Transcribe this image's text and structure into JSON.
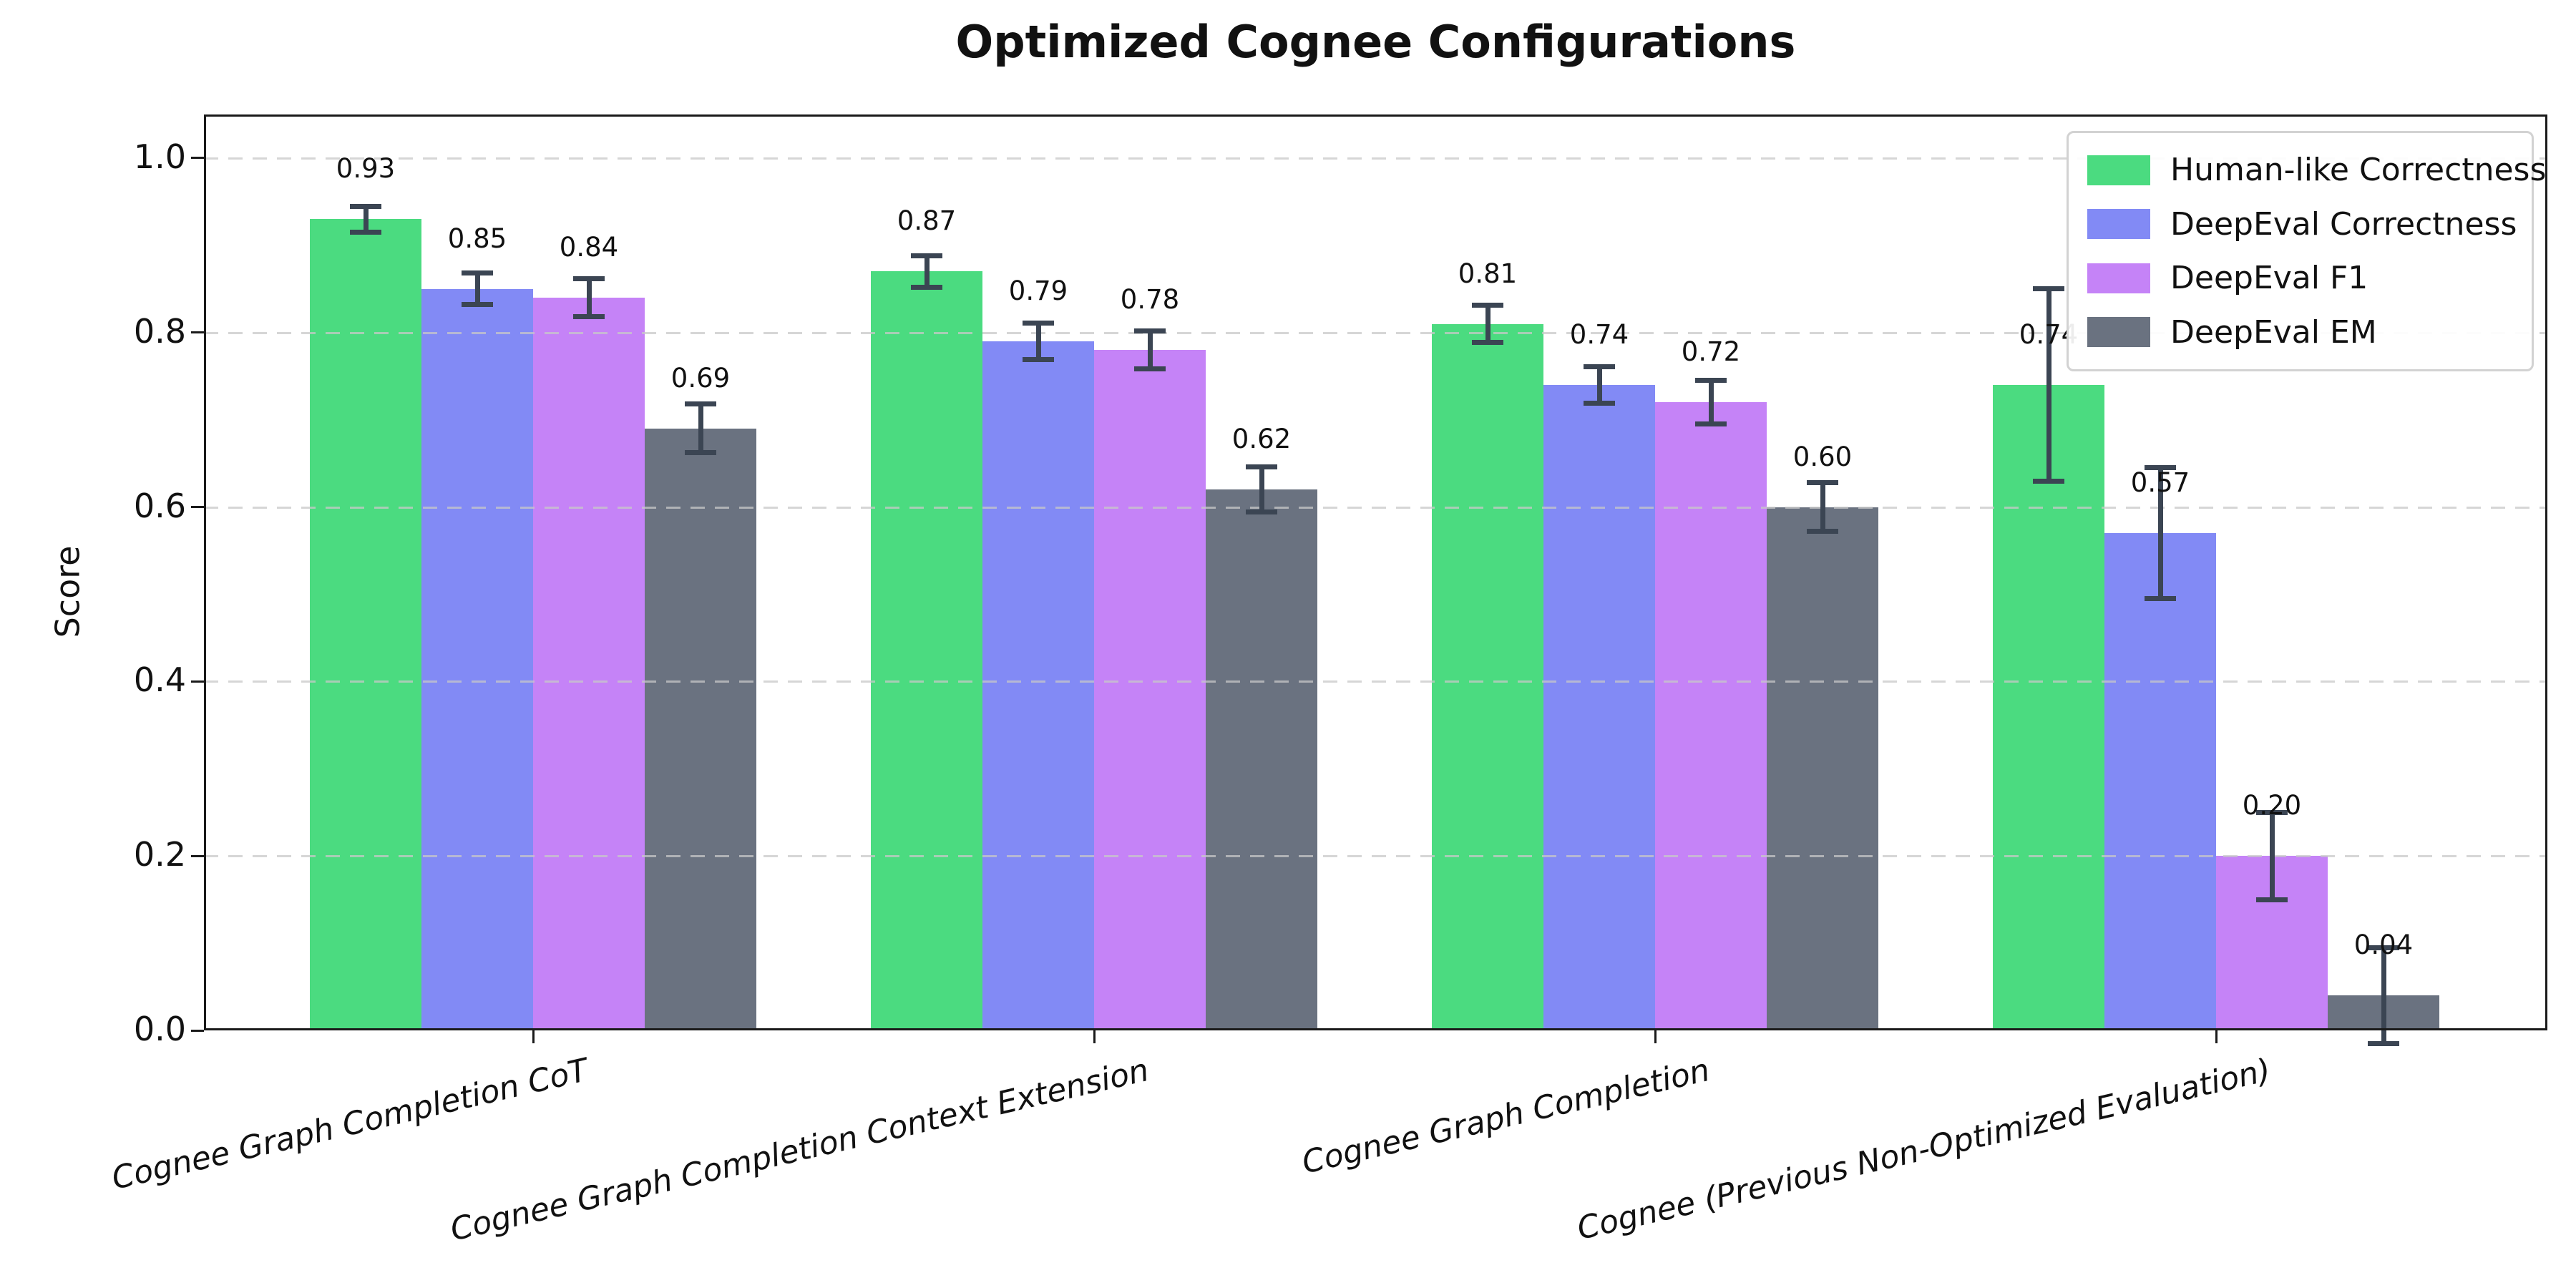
{
  "chart_data": {
    "type": "bar",
    "title": "Optimized Cognee Configurations",
    "ylabel": "Score",
    "xlabel": "",
    "categories": [
      "Cognee Graph Completion CoT",
      "Cognee Graph Completion Context Extension",
      "Cognee Graph Completion",
      "Cognee (Previous Non-Optimized Evaluation)"
    ],
    "series": [
      {
        "name": "Human-like Correctness",
        "color": "#4bdb80",
        "values": [
          0.93,
          0.87,
          0.81,
          0.74
        ],
        "errors": [
          0.015,
          0.018,
          0.021,
          0.11
        ]
      },
      {
        "name": "DeepEval Correctness",
        "color": "#828af5",
        "values": [
          0.85,
          0.79,
          0.74,
          0.57
        ],
        "errors": [
          0.018,
          0.021,
          0.021,
          0.075
        ]
      },
      {
        "name": "DeepEval F1",
        "color": "#c583f7",
        "values": [
          0.84,
          0.78,
          0.72,
          0.2
        ],
        "errors": [
          0.022,
          0.022,
          0.025,
          0.05
        ]
      },
      {
        "name": "DeepEval EM",
        "color": "#6a7280",
        "values": [
          0.69,
          0.62,
          0.6,
          0.04
        ],
        "errors": [
          0.028,
          0.026,
          0.028,
          0.055
        ]
      }
    ],
    "yticks": [
      "0.0",
      "0.2",
      "0.4",
      "0.6",
      "0.8",
      "1.0"
    ],
    "ylim": [
      0,
      1.05
    ],
    "grid": "horizontal-dashed",
    "grid_on_top": true,
    "legend_position": "upper-right",
    "error_bar_color": "#3b4553",
    "value_label_decimals": 2
  }
}
